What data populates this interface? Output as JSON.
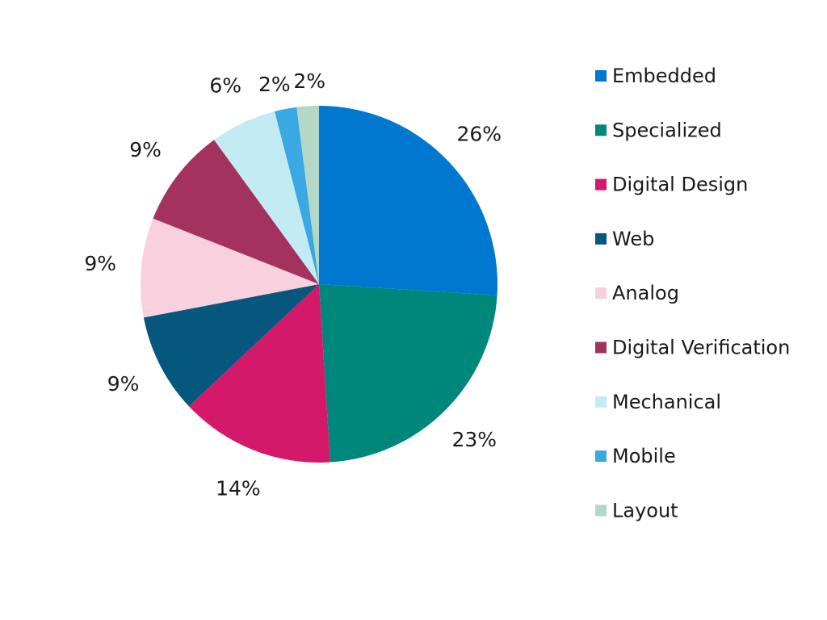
{
  "chart_data": {
    "type": "pie",
    "title": "",
    "legend_position": "right",
    "slices": [
      {
        "name": "Embedded",
        "value": 26,
        "label": "26%",
        "color": "#0078d0"
      },
      {
        "name": "Specialized",
        "value": 23,
        "label": "23%",
        "color": "#00877b"
      },
      {
        "name": "Digital Design",
        "value": 14,
        "label": "14%",
        "color": "#d4196a"
      },
      {
        "name": "Web",
        "value": 9,
        "label": "9%",
        "color": "#05577e"
      },
      {
        "name": "Analog",
        "value": 9,
        "label": "9%",
        "color": "#f9d0de"
      },
      {
        "name": "Digital Verification",
        "value": 9,
        "label": "9%",
        "color": "#a3325e"
      },
      {
        "name": "Mechanical",
        "value": 6,
        "label": "6%",
        "color": "#c3ebf4"
      },
      {
        "name": "Mobile",
        "value": 2,
        "label": "2%",
        "color": "#3aa8e2"
      },
      {
        "name": "Layout",
        "value": 2,
        "label": "2%",
        "color": "#b4d8c8"
      }
    ]
  }
}
